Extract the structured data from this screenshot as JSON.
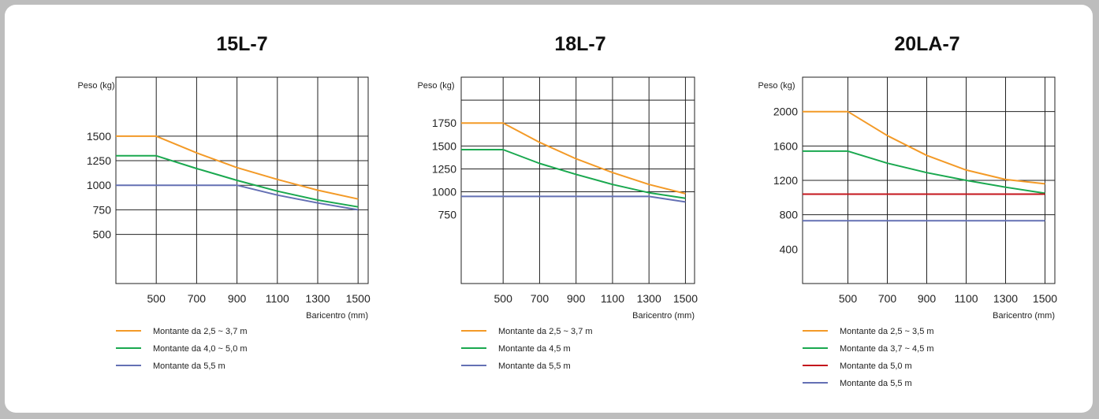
{
  "colors": {
    "orange": "#f39a27",
    "green": "#1aa84f",
    "blue": "#6470b4",
    "red": "#c4161c"
  },
  "chart_data": [
    {
      "type": "line",
      "title": "15L-7",
      "ylabel": "Peso (kg)",
      "xlabel": "Baricentro (mm)",
      "xlim": [
        300,
        1550
      ],
      "ylim": [
        0,
        2100
      ],
      "xticks": [
        500,
        700,
        900,
        1100,
        1300,
        1500
      ],
      "yticks": [
        500,
        750,
        1000,
        1250,
        1500
      ],
      "vgrid": [
        500,
        700,
        900,
        1100,
        1300,
        1500
      ],
      "hgrid": [
        500,
        750,
        1000,
        1250,
        1500
      ],
      "series": [
        {
          "name": "Montante da 2,5 ~ 3,7 m",
          "color": "#f39a27",
          "x": [
            300,
            500,
            700,
            900,
            1100,
            1300,
            1500
          ],
          "y": [
            1500,
            1500,
            1330,
            1180,
            1060,
            950,
            860
          ]
        },
        {
          "name": "Montante da 4,0 ~ 5,0 m",
          "color": "#1aa84f",
          "x": [
            300,
            500,
            700,
            900,
            1100,
            1300,
            1500
          ],
          "y": [
            1300,
            1300,
            1170,
            1050,
            940,
            850,
            780
          ]
        },
        {
          "name": "Montante da 5,5 m",
          "color": "#6470b4",
          "x": [
            300,
            500,
            700,
            900,
            1100,
            1300,
            1500
          ],
          "y": [
            1000,
            1000,
            1000,
            1000,
            900,
            820,
            750
          ]
        }
      ]
    },
    {
      "type": "line",
      "title": "18L-7",
      "ylabel": "Peso (kg)",
      "xlabel": "Baricentro (mm)",
      "xlim": [
        270,
        1550
      ],
      "ylim": [
        0,
        2250
      ],
      "xticks": [
        500,
        700,
        900,
        1100,
        1300,
        1500
      ],
      "yticks": [
        750,
        1000,
        1250,
        1500,
        1750
      ],
      "vgrid": [
        500,
        700,
        900,
        1100,
        1300,
        1500
      ],
      "hgrid": [
        1000,
        1250,
        1500,
        1750,
        2000
      ],
      "series": [
        {
          "name": "Montante da 2,5 ~ 3,7 m",
          "color": "#f39a27",
          "x": [
            270,
            500,
            700,
            900,
            1100,
            1300,
            1500
          ],
          "y": [
            1750,
            1750,
            1540,
            1360,
            1210,
            1080,
            980
          ]
        },
        {
          "name": "Montante da 4,5 m",
          "color": "#1aa84f",
          "x": [
            270,
            500,
            700,
            900,
            1100,
            1300,
            1500
          ],
          "y": [
            1460,
            1460,
            1310,
            1190,
            1080,
            990,
            930
          ]
        },
        {
          "name": "Montante da 5,5 m",
          "color": "#6470b4",
          "x": [
            270,
            500,
            700,
            900,
            1100,
            1300,
            1500
          ],
          "y": [
            950,
            950,
            950,
            950,
            950,
            950,
            890
          ]
        }
      ]
    },
    {
      "type": "line",
      "title": "20LA-7",
      "ylabel": "Peso (kg)",
      "xlabel": "Baricentro (mm)",
      "xlim": [
        270,
        1550
      ],
      "ylim": [
        0,
        2400
      ],
      "xticks": [
        500,
        700,
        900,
        1100,
        1300,
        1500
      ],
      "yticks": [
        400,
        800,
        1200,
        1600,
        2000
      ],
      "vgrid": [
        500,
        700,
        900,
        1100,
        1300,
        1500
      ],
      "hgrid": [
        800,
        1200,
        1600,
        2000
      ],
      "series": [
        {
          "name": "Montante da 2,5 ~ 3,5 m",
          "color": "#f39a27",
          "x": [
            270,
            500,
            700,
            900,
            1100,
            1300,
            1500
          ],
          "y": [
            2000,
            2000,
            1720,
            1490,
            1320,
            1210,
            1160
          ]
        },
        {
          "name": "Montante da 3,7 ~ 4,5 m",
          "color": "#1aa84f",
          "x": [
            270,
            500,
            700,
            900,
            1100,
            1300,
            1500
          ],
          "y": [
            1540,
            1540,
            1400,
            1290,
            1200,
            1120,
            1050
          ]
        },
        {
          "name": "Montante da 5,0 m",
          "color": "#c4161c",
          "x": [
            270,
            500,
            700,
            900,
            1100,
            1300,
            1500
          ],
          "y": [
            1040,
            1040,
            1040,
            1040,
            1040,
            1040,
            1040
          ]
        },
        {
          "name": "Montante da 5,5 m",
          "color": "#6470b4",
          "x": [
            270,
            500,
            700,
            900,
            1100,
            1300,
            1500
          ],
          "y": [
            730,
            730,
            730,
            730,
            730,
            730,
            730
          ]
        }
      ]
    }
  ]
}
